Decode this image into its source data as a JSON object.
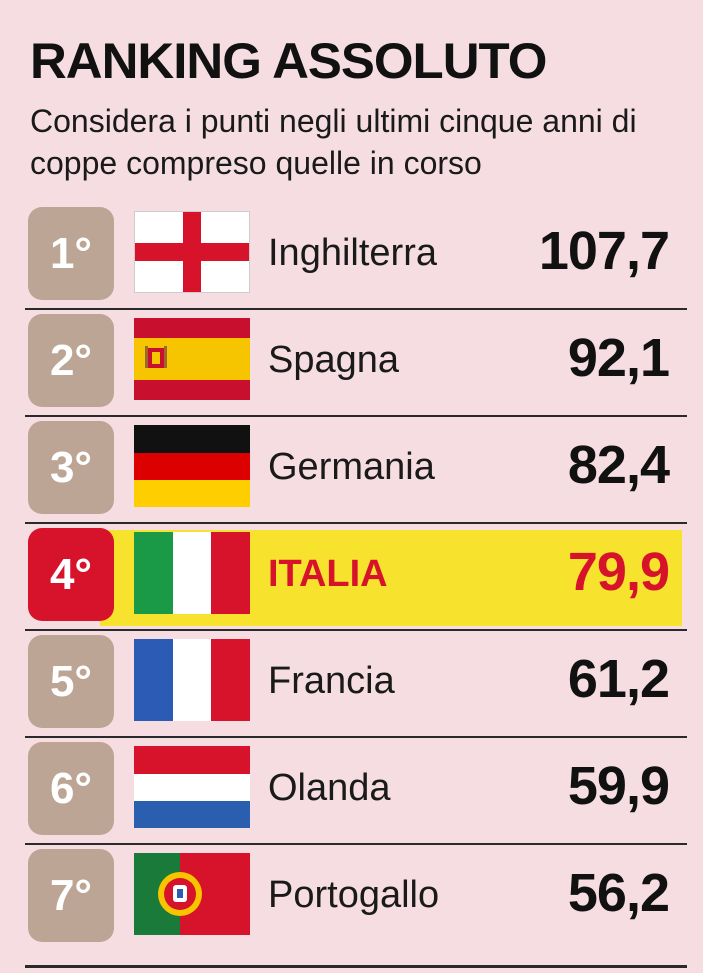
{
  "header": {
    "title": "RANKING ASSOLUTO",
    "subtitle": "Considera i punti negli ultimi cinque anni di coppe compreso quelle in corso"
  },
  "colors": {
    "background": "#f5dde2",
    "badge": "#bca594",
    "highlight_badge": "#d7132b",
    "highlight_band": "#f7e22e",
    "highlight_text": "#d7132b"
  },
  "chart_data": {
    "type": "table",
    "columns": [
      "rank",
      "flag",
      "country",
      "points"
    ],
    "rows": [
      {
        "rank": "1°",
        "flag": "england-flag-icon",
        "country": "Inghilterra",
        "points": "107,7",
        "value": 107.7
      },
      {
        "rank": "2°",
        "flag": "spain-flag-icon",
        "country": "Spagna",
        "points": "92,1",
        "value": 92.1
      },
      {
        "rank": "3°",
        "flag": "germany-flag-icon",
        "country": "Germania",
        "points": "82,4",
        "value": 82.4
      },
      {
        "rank": "4°",
        "flag": "italy-flag-icon",
        "country": "ITALIA",
        "points": "79,9",
        "value": 79.9,
        "highlight": true
      },
      {
        "rank": "5°",
        "flag": "france-flag-icon",
        "country": "Francia",
        "points": "61,2",
        "value": 61.2
      },
      {
        "rank": "6°",
        "flag": "netherlands-flag-icon",
        "country": "Olanda",
        "points": "59,9",
        "value": 59.9
      },
      {
        "rank": "7°",
        "flag": "portugal-flag-icon",
        "country": "Portogallo",
        "points": "56,2",
        "value": 56.2
      }
    ]
  }
}
